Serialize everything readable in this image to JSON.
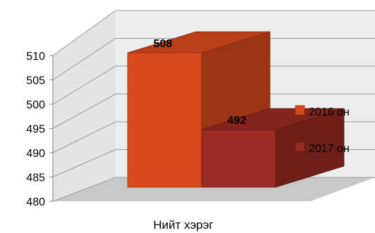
{
  "chart_data": {
    "type": "bar",
    "categories": [
      "Нийт хэрэг"
    ],
    "series": [
      {
        "name": "2016 он",
        "values": [
          508
        ],
        "color": "#D84A1B"
      },
      {
        "name": "2017 он",
        "values": [
          492
        ],
        "color": "#9A2B22"
      }
    ],
    "data_labels": [
      "508",
      "492"
    ],
    "yticks": [
      "480",
      "485",
      "490",
      "495",
      "500",
      "505",
      "510"
    ],
    "ylim": [
      480,
      510
    ],
    "grid": true,
    "legend_position": "right",
    "style": "3d-clustered"
  }
}
